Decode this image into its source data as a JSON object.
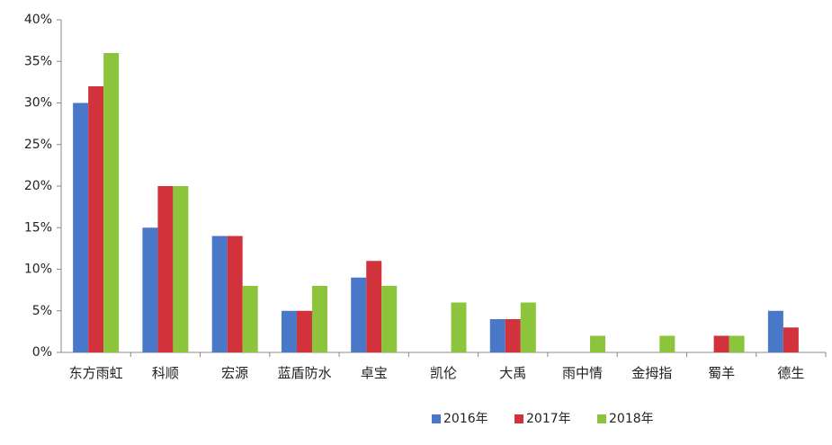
{
  "chart_data": {
    "type": "bar",
    "categories": [
      "东方雨虹",
      "科顺",
      "宏源",
      "蓝盾防水",
      "卓宝",
      "凯伦",
      "大禹",
      "雨中情",
      "金拇指",
      "蜀羊",
      "德生"
    ],
    "series": [
      {
        "name": "2016年",
        "color": "#4a78c8",
        "values": [
          30,
          15,
          14,
          5,
          9,
          0,
          4,
          0,
          0,
          0,
          5
        ]
      },
      {
        "name": "2017年",
        "color": "#d2323c",
        "values": [
          32,
          20,
          14,
          5,
          11,
          0,
          4,
          0,
          0,
          2,
          3
        ]
      },
      {
        "name": "2018年",
        "color": "#8cc43c",
        "values": [
          36,
          20,
          8,
          8,
          8,
          6,
          6,
          2,
          2,
          2,
          0
        ]
      }
    ],
    "ylim": [
      0,
      40
    ],
    "yticks": [
      {
        "value": 0,
        "label": "0%"
      },
      {
        "value": 5,
        "label": "5%"
      },
      {
        "value": 10,
        "label": "10%"
      },
      {
        "value": 15,
        "label": "15%"
      },
      {
        "value": 20,
        "label": "20%"
      },
      {
        "value": 25,
        "label": "25%"
      },
      {
        "value": 30,
        "label": "30%"
      },
      {
        "value": 35,
        "label": "35%"
      },
      {
        "value": 40,
        "label": "40%"
      }
    ],
    "grid": false,
    "legend": "bottom"
  }
}
